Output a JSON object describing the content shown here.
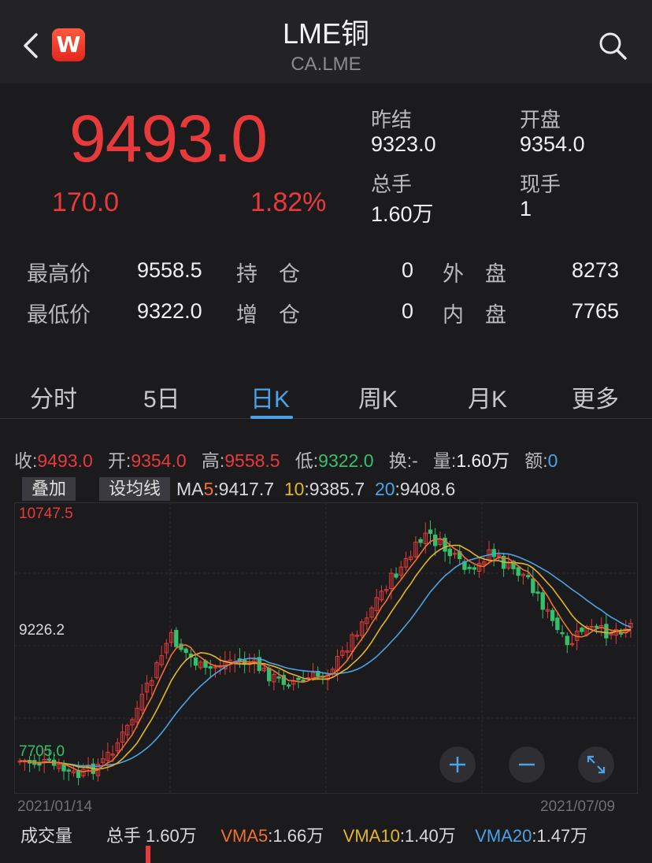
{
  "header": {
    "title": "LME铜",
    "subtitle": "CA.LME",
    "logo_text": "W"
  },
  "quote": {
    "price": "9493.0",
    "change": "170.0",
    "change_pct": "1.82%",
    "prev_settle_label": "昨结",
    "prev_settle": "9323.0",
    "open_label": "开盘",
    "open": "9354.0",
    "total_vol_label": "总手",
    "total_vol": "1.60万",
    "cur_vol_label": "现手",
    "cur_vol": "1"
  },
  "stats": {
    "high_label": "最高价",
    "high": "9558.5",
    "oi_label": "持　仓",
    "oi": "0",
    "outer_label": "外　盘",
    "outer": "8273",
    "low_label": "最低价",
    "low": "9322.0",
    "oi_chg_label": "增　仓",
    "oi_chg": "0",
    "inner_label": "内　盘",
    "inner": "7765"
  },
  "tabs": [
    "分时",
    "5日",
    "日K",
    "周K",
    "月K",
    "更多"
  ],
  "active_tab": "日K",
  "ohlc": {
    "close_label": "收:",
    "close": "9493.0",
    "open_label": "开:",
    "open": "9354.0",
    "high_label": "高:",
    "high": "9558.5",
    "low_label": "低:",
    "low": "9322.0",
    "turnover_label": "换:",
    "turnover": "-",
    "vol_label": "量:",
    "vol": "1.60万",
    "amount_label": "额:",
    "amount": "0"
  },
  "overlay_button": "叠加",
  "ma_button": "设均线",
  "ma": {
    "label": "MA",
    "ma5_key": "5",
    "ma5": ":9417.7",
    "ma10_key": "10",
    "ma10": ":9385.7",
    "ma20_key": "20",
    "ma20": ":9408.6"
  },
  "chart_data": {
    "type": "candlestick",
    "y_high_label": "10747.5",
    "y_mid_label": "9226.2",
    "y_low_label": "7705.0",
    "ylim": [
      7705.0,
      10747.5
    ],
    "start_date": "2021/01/14",
    "end_date": "2021/07/09",
    "series": [
      {
        "name": "MA5",
        "color": "#f07030"
      },
      {
        "name": "MA10",
        "color": "#e3b527"
      },
      {
        "name": "MA20",
        "color": "#4aa3e6"
      }
    ]
  },
  "volume": {
    "label": "成交量",
    "total_label": "总手",
    "total": "1.60万",
    "vma5_label": "VMA5",
    "vma5": ":1.66万",
    "vma10_label": "VMA10",
    "vma10": ":1.40万",
    "vma20_label": "VMA20",
    "vma20": ":1.47万"
  },
  "colors": {
    "up": "#e83a3a",
    "down": "#35c06b",
    "accent": "#4aa3e6",
    "background": "#1b1b1e"
  }
}
